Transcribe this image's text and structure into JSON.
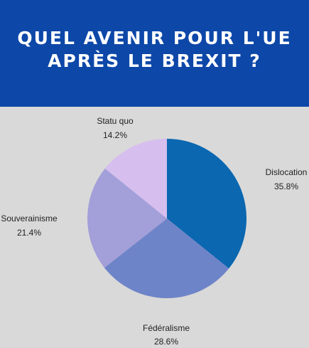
{
  "header": {
    "title_line1": "QUEL AVENIR POUR L'UE",
    "title_line2": "APRÈS LE BREXIT ?",
    "background": "#0d47a8"
  },
  "chart_data": {
    "type": "pie",
    "title": "QUEL AVENIR POUR L'UE APRÈS LE BREXIT ?",
    "categories": [
      "Dislocation",
      "Fédéralisme",
      "Souverainisme",
      "Statu quo"
    ],
    "values": [
      35.8,
      28.6,
      21.4,
      14.2
    ],
    "value_labels": [
      "35.8%",
      "28.6%",
      "21.4%",
      "14.2%"
    ],
    "colors": [
      "#0a67b0",
      "#6e84c8",
      "#a39fd9",
      "#d6bfee"
    ],
    "start_angle_deg": 0,
    "direction": "clockwise",
    "legend": "none"
  }
}
